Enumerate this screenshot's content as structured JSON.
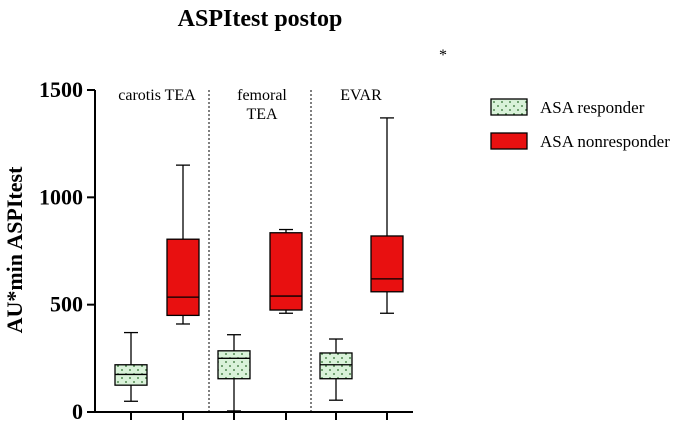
{
  "chart_data": {
    "type": "box",
    "title": "ASPItest postop",
    "xlabel": "",
    "ylabel": "AU*min ASPItest",
    "ylim": [
      0,
      1500
    ],
    "yticks": [
      0,
      500,
      1000,
      1500
    ],
    "groups": [
      {
        "label_lines": [
          "carotis TEA"
        ]
      },
      {
        "label_lines": [
          "femoral",
          "TEA"
        ]
      },
      {
        "label_lines": [
          "EVAR"
        ]
      }
    ],
    "significance": "*",
    "series": [
      {
        "name": "ASA responder",
        "color": "#d9f2d9",
        "pattern": "dots",
        "boxes": [
          {
            "min": 50,
            "q1": 125,
            "median": 175,
            "q3": 220,
            "max": 370
          },
          {
            "min": 5,
            "q1": 155,
            "median": 250,
            "q3": 285,
            "max": 360
          },
          {
            "min": 55,
            "q1": 155,
            "median": 220,
            "q3": 275,
            "max": 340
          }
        ]
      },
      {
        "name": "ASA nonresponder",
        "color": "#e81010",
        "pattern": "solid",
        "boxes": [
          {
            "min": 410,
            "q1": 450,
            "median": 535,
            "q3": 805,
            "max": 1150
          },
          {
            "min": 460,
            "q1": 475,
            "median": 540,
            "q3": 835,
            "max": 850
          },
          {
            "min": 460,
            "q1": 560,
            "median": 620,
            "q3": 820,
            "max": 1370
          }
        ]
      }
    ]
  }
}
